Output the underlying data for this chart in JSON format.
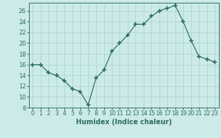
{
  "x": [
    0,
    1,
    2,
    3,
    4,
    5,
    6,
    7,
    8,
    9,
    10,
    11,
    12,
    13,
    14,
    15,
    16,
    17,
    18,
    19,
    20,
    21,
    22,
    23
  ],
  "y": [
    16,
    16,
    14.5,
    14,
    13,
    11.5,
    11,
    8.5,
    13.5,
    15,
    18.5,
    20,
    21.5,
    23.5,
    23.5,
    25,
    26,
    26.5,
    27,
    24,
    20.5,
    17.5,
    17,
    16.5
  ],
  "line_color": "#2d6e5e",
  "marker": "+",
  "marker_size": 4,
  "marker_lw": 1.2,
  "bg_color": "#cceae8",
  "grid_color": "#b0d8d5",
  "xlabel": "Humidex (Indice chaleur)",
  "xlim": [
    -0.5,
    23.5
  ],
  "ylim": [
    8,
    27.5
  ],
  "yticks": [
    8,
    10,
    12,
    14,
    16,
    18,
    20,
    22,
    24,
    26
  ],
  "xticks": [
    0,
    1,
    2,
    3,
    4,
    5,
    6,
    7,
    8,
    9,
    10,
    11,
    12,
    13,
    14,
    15,
    16,
    17,
    18,
    19,
    20,
    21,
    22,
    23
  ],
  "label_fontsize": 7,
  "tick_fontsize": 6
}
